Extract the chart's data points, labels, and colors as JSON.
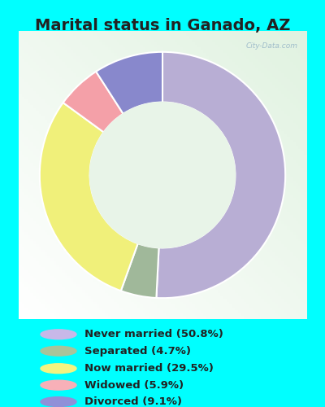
{
  "title": "Marital status in Ganado, AZ",
  "slices": [
    {
      "label": "Never married (50.8%)",
      "value": 50.8,
      "color": "#b8aed4"
    },
    {
      "label": "Separated (4.7%)",
      "value": 4.7,
      "color": "#a0b89a"
    },
    {
      "label": "Now married (29.5%)",
      "value": 29.5,
      "color": "#f0f07a"
    },
    {
      "label": "Widowed (5.9%)",
      "value": 5.9,
      "color": "#f4a0a8"
    },
    {
      "label": "Divorced (9.1%)",
      "value": 9.1,
      "color": "#8888cc"
    }
  ],
  "bg_outer": "#00ffff",
  "bg_panel_color": "#d8eddc",
  "title_color": "#222222",
  "title_fontsize": 14,
  "watermark": "City-Data.com",
  "legend_colors": [
    "#c8b8e8",
    "#a8c49a",
    "#f4f480",
    "#f8b0b8",
    "#9090d8"
  ],
  "figsize": [
    4.0,
    5.0
  ],
  "dpi": 100
}
